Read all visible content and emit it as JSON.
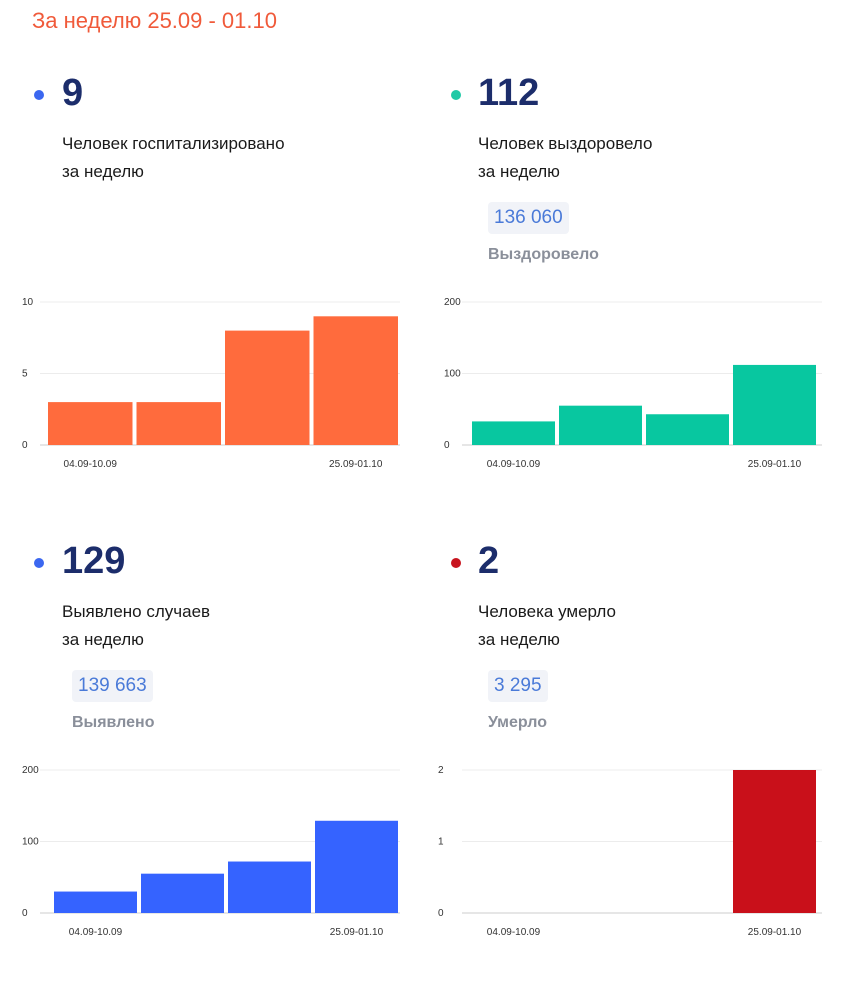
{
  "period_label": "За неделю 25.09 - 01.10",
  "panels": [
    {
      "value": "9",
      "desc_line1": "Человек госпитализировано",
      "desc_line2": "за неделю",
      "total": "",
      "total_label": "",
      "dot_color": "#3b67f0",
      "bar_color": "#ff6b3d"
    },
    {
      "value": "112",
      "desc_line1": "Человек выздоровело",
      "desc_line2": "за неделю",
      "total": "136 060",
      "total_label": "Выздоровело",
      "dot_color": "#1fc9a6",
      "bar_color": "#08c7a0"
    },
    {
      "value": "129",
      "desc_line1": "Выявлено случаев",
      "desc_line2": "за неделю",
      "total": "139 663",
      "total_label": "Выявлено",
      "dot_color": "#3b67f0",
      "bar_color": "#3563ff"
    },
    {
      "value": "2",
      "desc_line1": "Человека умерло",
      "desc_line2": "за неделю",
      "total": "3 295",
      "total_label": "Умерло",
      "dot_color": "#c8141e",
      "bar_color": "#c9101a"
    }
  ],
  "chart_data": [
    {
      "type": "bar",
      "categories": [
        "04.09-10.09",
        "",
        "",
        "25.09-01.10"
      ],
      "values": [
        3,
        3,
        8,
        9
      ],
      "ylim": [
        0,
        10
      ],
      "yticks": [
        "0",
        "5",
        "10"
      ],
      "grid": true
    },
    {
      "type": "bar",
      "categories": [
        "04.09-10.09",
        "",
        "",
        "25.09-01.10"
      ],
      "values": [
        33,
        55,
        43,
        112
      ],
      "ylim": [
        0,
        200
      ],
      "yticks": [
        "0",
        "100",
        "200"
      ],
      "grid": true
    },
    {
      "type": "bar",
      "categories": [
        "04.09-10.09",
        "",
        "",
        "25.09-01.10"
      ],
      "values": [
        30,
        55,
        72,
        129
      ],
      "ylim": [
        0,
        200
      ],
      "yticks": [
        "0",
        "100",
        "200"
      ],
      "grid": true
    },
    {
      "type": "bar",
      "categories": [
        "04.09-10.09",
        "",
        "",
        "25.09-01.10"
      ],
      "values": [
        0,
        0,
        0,
        2
      ],
      "ylim": [
        0,
        2
      ],
      "yticks": [
        "0",
        "1",
        "2"
      ],
      "grid": true
    }
  ]
}
